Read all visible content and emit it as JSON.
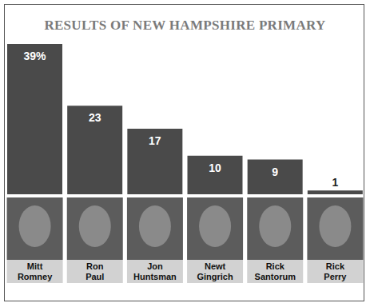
{
  "chart_data": {
    "type": "bar",
    "title": "RESULTS OF NEW HAMPSHIRE PRIMARY",
    "categories": [
      "Mitt Romney",
      "Ron Paul",
      "Jon Huntsman",
      "Newt Gingrich",
      "Rick Santorum",
      "Rick Perry"
    ],
    "values": [
      39,
      23,
      17,
      10,
      9,
      1
    ],
    "value_labels": [
      "39%",
      "23",
      "17",
      "10",
      "9",
      "1"
    ],
    "color": "#4a4a4a",
    "data_labels": true,
    "tick_labels": "x"
  }
}
